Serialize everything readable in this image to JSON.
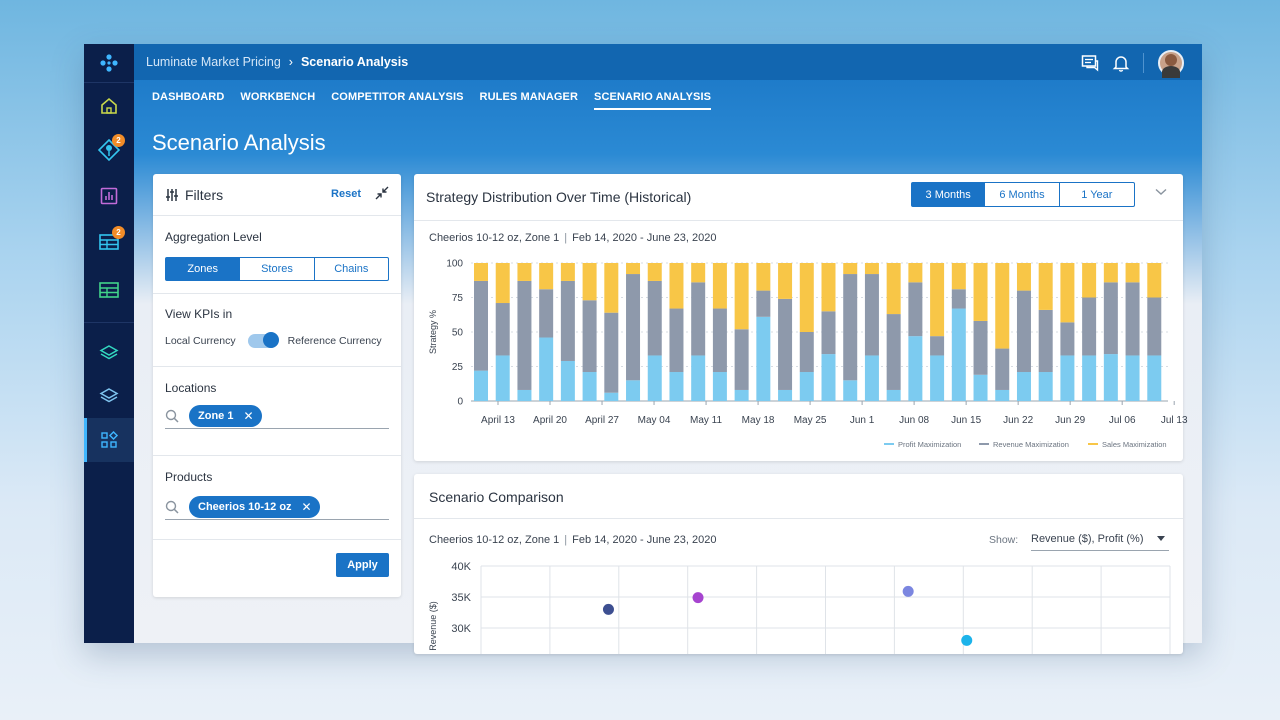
{
  "breadcrumb": {
    "parent": "Luminate Market Pricing",
    "current": "Scenario Analysis"
  },
  "sidebar": {
    "items": [
      {
        "icon": "home-icon"
      },
      {
        "icon": "pin-icon",
        "badge": "2"
      },
      {
        "icon": "chart-icon"
      },
      {
        "icon": "grid-icon",
        "badge": "2"
      },
      {
        "icon": "table-icon"
      },
      {
        "icon": "layers-icon"
      },
      {
        "icon": "layers-outline-icon"
      },
      {
        "icon": "apps-icon",
        "active": true
      }
    ]
  },
  "tabs": [
    {
      "label": "DASHBOARD"
    },
    {
      "label": "WORKBENCH"
    },
    {
      "label": "COMPETITOR ANALYSIS"
    },
    {
      "label": "RULES MANAGER"
    },
    {
      "label": "SCENARIO ANALYSIS",
      "active": true
    }
  ],
  "page_title": "Scenario Analysis",
  "filters": {
    "title": "Filters",
    "reset": "Reset",
    "aggregation": {
      "label": "Aggregation Level",
      "options": [
        "Zones",
        "Stores",
        "Chains"
      ],
      "selected": "Zones"
    },
    "kpis": {
      "label": "View KPIs in",
      "left": "Local Currency",
      "right": "Reference Currency"
    },
    "locations": {
      "label": "Locations",
      "chip": "Zone 1"
    },
    "products": {
      "label": "Products",
      "chip": "Cheerios 10-12 oz"
    },
    "apply": "Apply"
  },
  "strategy": {
    "title": "Strategy Distribution Over Time (Historical)",
    "ranges": [
      "3 Months",
      "6 Months",
      "1 Year"
    ],
    "selected_range": "3 Months",
    "product": "Cheerios 10-12 oz, Zone 1",
    "dates": "Feb 14, 2020 - June 23, 2020"
  },
  "comparison": {
    "title": "Scenario Comparison",
    "product": "Cheerios 10-12 oz, Zone 1",
    "dates": "Feb 14, 2020 - June 23, 2020",
    "show_label": "Show:",
    "show_value": "Revenue ($), Profit (%)"
  },
  "colors": {
    "profit": "#7ccbf0",
    "revenue": "#8e99ab",
    "sales": "#f8c647",
    "accent": "#1a73c6"
  },
  "chart_data": [
    {
      "type": "bar",
      "stacked": true,
      "title": "",
      "ylabel": "Strategy %",
      "ylim": [
        0,
        100
      ],
      "yticks": [
        0,
        25,
        50,
        75,
        100
      ],
      "xtick_labels": [
        "April 13",
        "April 20",
        "April 27",
        "May 04",
        "May 11",
        "May 18",
        "May 25",
        "Jun 1",
        "Jun 08",
        "Jun 15",
        "Jun 22",
        "Jun 29",
        "Jul 06",
        "Jul 13"
      ],
      "legend": [
        "Profit Maximization",
        "Revenue Maximization",
        "Sales Maximization"
      ],
      "legend_position": "bottom-right",
      "grid": true,
      "series": [
        {
          "name": "Profit Maximization",
          "values": [
            22,
            33,
            8,
            46,
            29,
            21,
            6,
            15,
            33,
            21,
            33,
            21,
            8,
            61,
            8,
            21,
            34,
            15,
            33,
            8,
            47,
            33,
            67,
            19,
            8,
            21,
            21,
            33,
            33,
            34,
            33,
            33
          ]
        },
        {
          "name": "Revenue Maximization",
          "values": [
            65,
            38,
            79,
            35,
            58,
            52,
            58,
            77,
            54,
            46,
            53,
            46,
            44,
            19,
            66,
            29,
            31,
            77,
            59,
            55,
            39,
            14,
            14,
            39,
            30,
            59,
            45,
            24,
            42,
            52,
            53,
            42
          ]
        },
        {
          "name": "Sales Maximization",
          "values": [
            13,
            29,
            13,
            19,
            13,
            27,
            36,
            8,
            13,
            33,
            14,
            33,
            48,
            20,
            26,
            50,
            35,
            8,
            8,
            37,
            14,
            53,
            19,
            42,
            62,
            20,
            34,
            43,
            25,
            14,
            14,
            25
          ]
        }
      ]
    },
    {
      "type": "scatter",
      "title": "",
      "ylabel": "Revenue ($)",
      "yticks": [
        "40K",
        "35K",
        "30K"
      ],
      "ylim": [
        27000,
        40000
      ],
      "points": [
        {
          "x": 1.85,
          "y": 33000,
          "color": "#3d4f91"
        },
        {
          "x": 3.15,
          "y": 34900,
          "color": "#a644cf"
        },
        {
          "x": 6.2,
          "y": 35900,
          "color": "#7b86e0"
        },
        {
          "x": 7.05,
          "y": 28000,
          "color": "#1cb3ea"
        }
      ],
      "x_grid_count": 10
    }
  ]
}
